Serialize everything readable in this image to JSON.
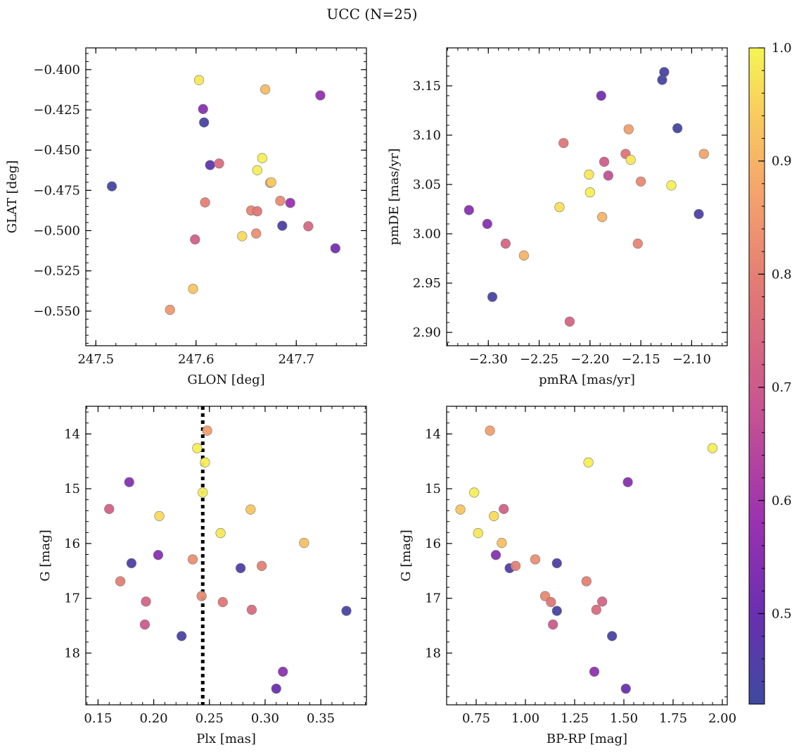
{
  "figure": {
    "title": "UCC (N=25)"
  },
  "colorbar": {
    "min": 0.42,
    "max": 1.0,
    "ticks": [
      0.5,
      0.6,
      0.7,
      0.8,
      0.9,
      1.0
    ],
    "tick_labels": [
      "0.5",
      "0.6",
      "0.7",
      "0.8",
      "0.9",
      "1.0"
    ],
    "colormap": "plasma"
  },
  "chart_data": [
    {
      "type": "scatter",
      "xlabel": "GLON [deg]",
      "ylabel": "GLAT [deg]",
      "xlim": [
        247.49,
        247.77
      ],
      "ylim": [
        -0.5715,
        -0.3865
      ],
      "xticks": [
        247.5,
        247.6,
        247.7
      ],
      "xtick_labels": [
        "247.5",
        "247.6",
        "247.7"
      ],
      "yticks": [
        -0.55,
        -0.525,
        -0.5,
        -0.475,
        -0.45,
        -0.425,
        -0.4
      ],
      "ytick_labels": [
        "−0.550",
        "−0.525",
        "−0.500",
        "−0.475",
        "−0.450",
        "−0.425",
        "−0.400"
      ],
      "x_minor_step": 0.02,
      "y_minor_step": 0.005,
      "points": [
        {
          "x": 247.516,
          "y": -0.4725,
          "c": 0.43
        },
        {
          "x": 247.603,
          "y": -0.4065,
          "c": 0.98
        },
        {
          "x": 247.607,
          "y": -0.4245,
          "c": 0.55
        },
        {
          "x": 247.608,
          "y": -0.4328,
          "c": 0.44
        },
        {
          "x": 247.614,
          "y": -0.4593,
          "c": 0.48
        },
        {
          "x": 247.623,
          "y": -0.4583,
          "c": 0.75
        },
        {
          "x": 247.609,
          "y": -0.4825,
          "c": 0.8
        },
        {
          "x": 247.599,
          "y": -0.5055,
          "c": 0.72
        },
        {
          "x": 247.597,
          "y": -0.5362,
          "c": 0.93
        },
        {
          "x": 247.574,
          "y": -0.5492,
          "c": 0.85
        },
        {
          "x": 247.646,
          "y": -0.5035,
          "c": 0.96
        },
        {
          "x": 247.655,
          "y": -0.4875,
          "c": 0.81
        },
        {
          "x": 247.661,
          "y": -0.488,
          "c": 0.78
        },
        {
          "x": 247.66,
          "y": -0.5018,
          "c": 0.83
        },
        {
          "x": 247.661,
          "y": -0.4625,
          "c": 0.99
        },
        {
          "x": 247.666,
          "y": -0.455,
          "c": 0.99
        },
        {
          "x": 247.669,
          "y": -0.4123,
          "c": 0.91
        },
        {
          "x": 247.674,
          "y": -0.4703,
          "c": 0.85
        },
        {
          "x": 247.675,
          "y": -0.47,
          "c": 0.94
        },
        {
          "x": 247.684,
          "y": -0.4815,
          "c": 0.82
        },
        {
          "x": 247.686,
          "y": -0.497,
          "c": 0.45
        },
        {
          "x": 247.694,
          "y": -0.4828,
          "c": 0.58
        },
        {
          "x": 247.712,
          "y": -0.4973,
          "c": 0.74
        },
        {
          "x": 247.724,
          "y": -0.416,
          "c": 0.57
        },
        {
          "x": 247.739,
          "y": -0.511,
          "c": 0.52
        }
      ]
    },
    {
      "type": "scatter",
      "xlabel": "pmRA [mas/yr]",
      "ylabel": "pmDE [mas/yr]",
      "xlim": [
        -2.341,
        -2.065
      ],
      "ylim": [
        2.8865,
        3.1885
      ],
      "xticks": [
        -2.3,
        -2.25,
        -2.2,
        -2.15,
        -2.1
      ],
      "xtick_labels": [
        "−2.30",
        "−2.25",
        "−2.20",
        "−2.15",
        "−2.10"
      ],
      "yticks": [
        2.9,
        2.95,
        3.0,
        3.05,
        3.1,
        3.15
      ],
      "ytick_labels": [
        "2.90",
        "2.95",
        "3.00",
        "3.05",
        "3.10",
        "3.15"
      ],
      "x_minor_step": 0.01,
      "y_minor_step": 0.01,
      "points": [
        {
          "x": -2.319,
          "y": 3.024,
          "c": 0.55
        },
        {
          "x": -2.301,
          "y": 3.01,
          "c": 0.55
        },
        {
          "x": -2.296,
          "y": 2.936,
          "c": 0.44
        },
        {
          "x": -2.283,
          "y": 2.99,
          "c": 0.73
        },
        {
          "x": -2.265,
          "y": 2.978,
          "c": 0.9
        },
        {
          "x": -2.23,
          "y": 3.027,
          "c": 0.97
        },
        {
          "x": -2.226,
          "y": 3.092,
          "c": 0.78
        },
        {
          "x": -2.22,
          "y": 2.911,
          "c": 0.73
        },
        {
          "x": -2.201,
          "y": 3.06,
          "c": 0.98
        },
        {
          "x": -2.2,
          "y": 3.042,
          "c": 0.99
        },
        {
          "x": -2.189,
          "y": 3.14,
          "c": 0.52
        },
        {
          "x": -2.188,
          "y": 3.017,
          "c": 0.9
        },
        {
          "x": -2.186,
          "y": 3.073,
          "c": 0.71
        },
        {
          "x": -2.182,
          "y": 3.059,
          "c": 0.67
        },
        {
          "x": -2.165,
          "y": 3.081,
          "c": 0.77
        },
        {
          "x": -2.162,
          "y": 3.106,
          "c": 0.86
        },
        {
          "x": -2.16,
          "y": 3.075,
          "c": 0.98
        },
        {
          "x": -2.153,
          "y": 2.99,
          "c": 0.81
        },
        {
          "x": -2.15,
          "y": 3.053,
          "c": 0.82
        },
        {
          "x": -2.129,
          "y": 3.156,
          "c": 0.44
        },
        {
          "x": -2.127,
          "y": 3.164,
          "c": 0.44
        },
        {
          "x": -2.12,
          "y": 3.049,
          "c": 0.99
        },
        {
          "x": -2.114,
          "y": 3.107,
          "c": 0.43
        },
        {
          "x": -2.093,
          "y": 3.02,
          "c": 0.45
        },
        {
          "x": -2.088,
          "y": 3.081,
          "c": 0.87
        }
      ]
    },
    {
      "type": "scatter",
      "xlabel": "Plx [mas]",
      "ylabel": "G [mag]",
      "y_inverted": true,
      "xlim": [
        0.139,
        0.391
      ],
      "ylim": [
        18.945,
        13.495
      ],
      "xticks": [
        0.15,
        0.2,
        0.25,
        0.3,
        0.35
      ],
      "xtick_labels": [
        "0.15",
        "0.20",
        "0.25",
        "0.30",
        "0.35"
      ],
      "yticks": [
        14,
        15,
        16,
        17,
        18
      ],
      "ytick_labels": [
        "14",
        "15",
        "16",
        "17",
        "18"
      ],
      "x_minor_step": 0.01,
      "y_minor_step": 0.2,
      "vline": {
        "x": 0.244,
        "style": "dotted",
        "color": "#000000"
      },
      "points": [
        {
          "x": 0.16,
          "y": 15.37,
          "c": 0.72
        },
        {
          "x": 0.17,
          "y": 16.69,
          "c": 0.8
        },
        {
          "x": 0.178,
          "y": 14.88,
          "c": 0.55
        },
        {
          "x": 0.18,
          "y": 16.36,
          "c": 0.45
        },
        {
          "x": 0.192,
          "y": 17.48,
          "c": 0.7
        },
        {
          "x": 0.193,
          "y": 17.06,
          "c": 0.73
        },
        {
          "x": 0.204,
          "y": 16.21,
          "c": 0.55
        },
        {
          "x": 0.205,
          "y": 15.5,
          "c": 0.96
        },
        {
          "x": 0.225,
          "y": 17.69,
          "c": 0.44
        },
        {
          "x": 0.235,
          "y": 16.29,
          "c": 0.83
        },
        {
          "x": 0.239,
          "y": 14.26,
          "c": 0.99
        },
        {
          "x": 0.243,
          "y": 16.96,
          "c": 0.82
        },
        {
          "x": 0.244,
          "y": 15.07,
          "c": 0.99
        },
        {
          "x": 0.246,
          "y": 14.52,
          "c": 0.99
        },
        {
          "x": 0.248,
          "y": 13.94,
          "c": 0.86
        },
        {
          "x": 0.26,
          "y": 15.81,
          "c": 0.98
        },
        {
          "x": 0.262,
          "y": 17.07,
          "c": 0.78
        },
        {
          "x": 0.278,
          "y": 16.45,
          "c": 0.45
        },
        {
          "x": 0.287,
          "y": 15.38,
          "c": 0.93
        },
        {
          "x": 0.288,
          "y": 17.21,
          "c": 0.75
        },
        {
          "x": 0.297,
          "y": 16.41,
          "c": 0.8
        },
        {
          "x": 0.31,
          "y": 18.65,
          "c": 0.5
        },
        {
          "x": 0.316,
          "y": 18.34,
          "c": 0.56
        },
        {
          "x": 0.335,
          "y": 15.99,
          "c": 0.92
        },
        {
          "x": 0.373,
          "y": 17.23,
          "c": 0.44
        }
      ]
    },
    {
      "type": "scatter",
      "xlabel": "BP-RP [mag]",
      "ylabel": "G [mag]",
      "y_inverted": true,
      "xlim": [
        0.6,
        2.025
      ],
      "ylim": [
        18.945,
        13.495
      ],
      "xticks": [
        0.75,
        1.0,
        1.25,
        1.5,
        1.75,
        2.0
      ],
      "xtick_labels": [
        "0.75",
        "1.00",
        "1.25",
        "1.50",
        "1.75",
        "2.00"
      ],
      "yticks": [
        14,
        15,
        16,
        17,
        18
      ],
      "ytick_labels": [
        "14",
        "15",
        "16",
        "17",
        "18"
      ],
      "x_minor_step": 0.05,
      "y_minor_step": 0.2,
      "points": [
        {
          "x": 0.67,
          "y": 15.38,
          "c": 0.93
        },
        {
          "x": 0.74,
          "y": 15.07,
          "c": 0.99
        },
        {
          "x": 0.76,
          "y": 15.81,
          "c": 0.98
        },
        {
          "x": 0.82,
          "y": 13.94,
          "c": 0.86
        },
        {
          "x": 0.84,
          "y": 15.5,
          "c": 0.96
        },
        {
          "x": 0.85,
          "y": 16.21,
          "c": 0.55
        },
        {
          "x": 0.88,
          "y": 15.99,
          "c": 0.92
        },
        {
          "x": 0.89,
          "y": 15.37,
          "c": 0.72
        },
        {
          "x": 0.92,
          "y": 16.45,
          "c": 0.45
        },
        {
          "x": 0.95,
          "y": 16.41,
          "c": 0.8
        },
        {
          "x": 1.05,
          "y": 16.29,
          "c": 0.83
        },
        {
          "x": 1.1,
          "y": 16.96,
          "c": 0.82
        },
        {
          "x": 1.13,
          "y": 17.07,
          "c": 0.78
        },
        {
          "x": 1.14,
          "y": 17.48,
          "c": 0.7
        },
        {
          "x": 1.16,
          "y": 16.36,
          "c": 0.45
        },
        {
          "x": 1.16,
          "y": 17.23,
          "c": 0.44
        },
        {
          "x": 1.31,
          "y": 16.69,
          "c": 0.8
        },
        {
          "x": 1.32,
          "y": 14.52,
          "c": 0.99
        },
        {
          "x": 1.35,
          "y": 18.34,
          "c": 0.56
        },
        {
          "x": 1.36,
          "y": 17.21,
          "c": 0.75
        },
        {
          "x": 1.39,
          "y": 17.06,
          "c": 0.73
        },
        {
          "x": 1.44,
          "y": 17.69,
          "c": 0.44
        },
        {
          "x": 1.51,
          "y": 18.65,
          "c": 0.5
        },
        {
          "x": 1.52,
          "y": 14.88,
          "c": 0.55
        },
        {
          "x": 1.95,
          "y": 14.26,
          "c": 0.99
        }
      ]
    }
  ]
}
